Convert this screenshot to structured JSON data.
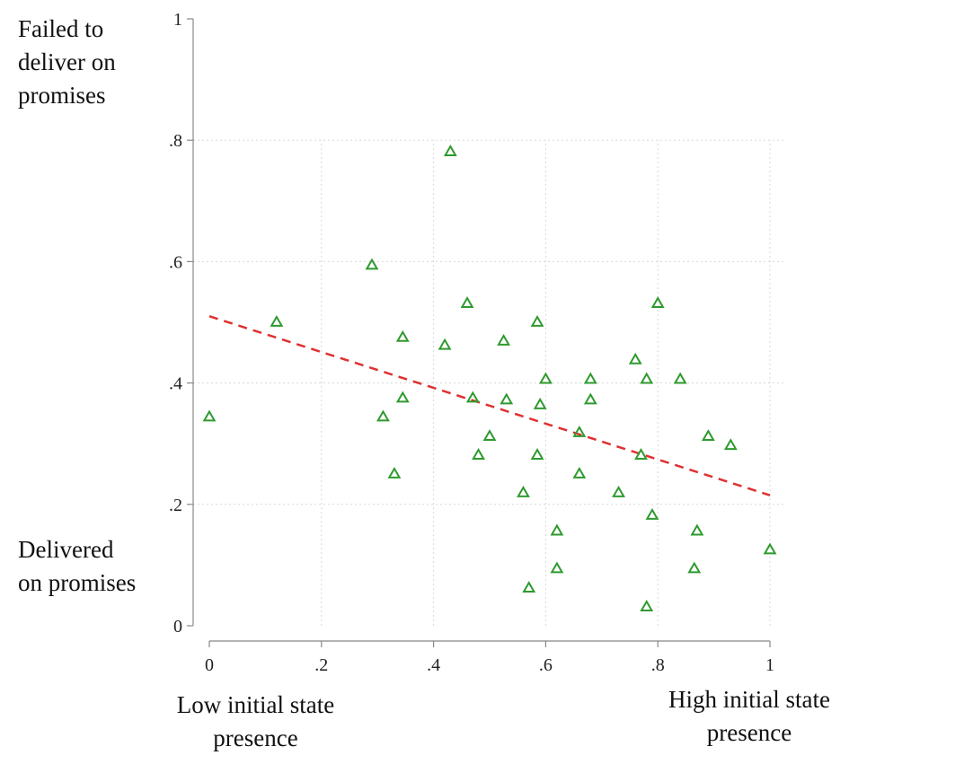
{
  "chart_data": {
    "type": "scatter",
    "title": "",
    "xlabel": "",
    "ylabel": "",
    "xlim": [
      0,
      1
    ],
    "ylim": [
      0,
      1
    ],
    "x_ticks": [
      "0",
      ".2",
      ".4",
      ".6",
      ".8",
      "1"
    ],
    "x_tick_values": [
      0,
      0.2,
      0.4,
      0.6,
      0.8,
      1
    ],
    "y_ticks": [
      "0",
      ".2",
      ".4",
      ".6",
      ".8",
      "1"
    ],
    "y_tick_values": [
      0,
      0.2,
      0.4,
      0.6,
      0.8,
      1
    ],
    "grid": true,
    "annotations": {
      "y_high": [
        "Failed to",
        "deliver on",
        "promises"
      ],
      "y_low": [
        "Delivered",
        "on promises"
      ],
      "x_low": [
        "Low initial state",
        "presence"
      ],
      "x_high": [
        "High initial state",
        "presence"
      ]
    },
    "series": [
      {
        "marker": "hollow-triangle",
        "color": "#2e9a2e",
        "points": [
          [
            0.0,
            0.344
          ],
          [
            0.12,
            0.5
          ],
          [
            0.29,
            0.594
          ],
          [
            0.31,
            0.344
          ],
          [
            0.33,
            0.25
          ],
          [
            0.345,
            0.475
          ],
          [
            0.345,
            0.375
          ],
          [
            0.42,
            0.462
          ],
          [
            0.43,
            0.781
          ],
          [
            0.46,
            0.531
          ],
          [
            0.47,
            0.375
          ],
          [
            0.48,
            0.281
          ],
          [
            0.5,
            0.312
          ],
          [
            0.525,
            0.469
          ],
          [
            0.53,
            0.372
          ],
          [
            0.56,
            0.219
          ],
          [
            0.57,
            0.062
          ],
          [
            0.585,
            0.5
          ],
          [
            0.585,
            0.281
          ],
          [
            0.59,
            0.364
          ],
          [
            0.6,
            0.406
          ],
          [
            0.62,
            0.156
          ],
          [
            0.62,
            0.094
          ],
          [
            0.66,
            0.318
          ],
          [
            0.66,
            0.25
          ],
          [
            0.68,
            0.406
          ],
          [
            0.68,
            0.372
          ],
          [
            0.73,
            0.219
          ],
          [
            0.76,
            0.438
          ],
          [
            0.77,
            0.281
          ],
          [
            0.78,
            0.406
          ],
          [
            0.78,
            0.031
          ],
          [
            0.79,
            0.182
          ],
          [
            0.8,
            0.531
          ],
          [
            0.84,
            0.406
          ],
          [
            0.865,
            0.094
          ],
          [
            0.87,
            0.156
          ],
          [
            0.89,
            0.312
          ],
          [
            0.93,
            0.297
          ],
          [
            1.0,
            0.125
          ]
        ]
      }
    ],
    "fit_line": {
      "style": "dashed",
      "color": "#e03030",
      "x": [
        0,
        1
      ],
      "y": [
        0.51,
        0.215
      ]
    }
  }
}
